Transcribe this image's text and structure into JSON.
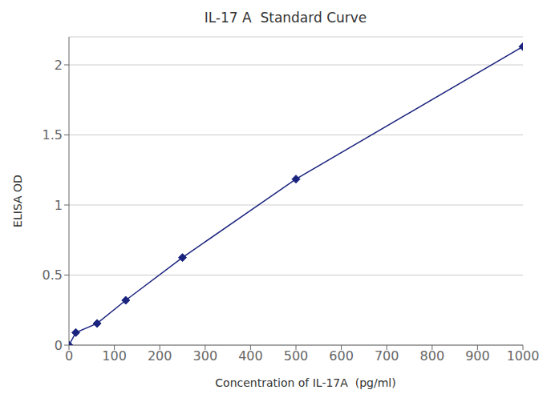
{
  "chart_data": {
    "type": "line",
    "title": "IL-17 A  Standard Curve",
    "xlabel": "Concentration of IL-17A  (pg/ml)",
    "ylabel": "ELISA OD",
    "x": [
      0,
      15,
      62,
      125,
      250,
      500,
      1000
    ],
    "values": [
      0.0,
      0.09,
      0.155,
      0.32,
      0.625,
      1.185,
      2.13
    ],
    "xlim": [
      0,
      1000
    ],
    "ylim": [
      0,
      2.2
    ],
    "xticks": [
      0,
      100,
      200,
      300,
      400,
      500,
      600,
      700,
      800,
      900,
      1000
    ],
    "yticks": [
      0,
      0.5,
      1,
      1.5,
      2
    ],
    "color": "#1a237e",
    "marker": "diamond",
    "grid": "y"
  }
}
